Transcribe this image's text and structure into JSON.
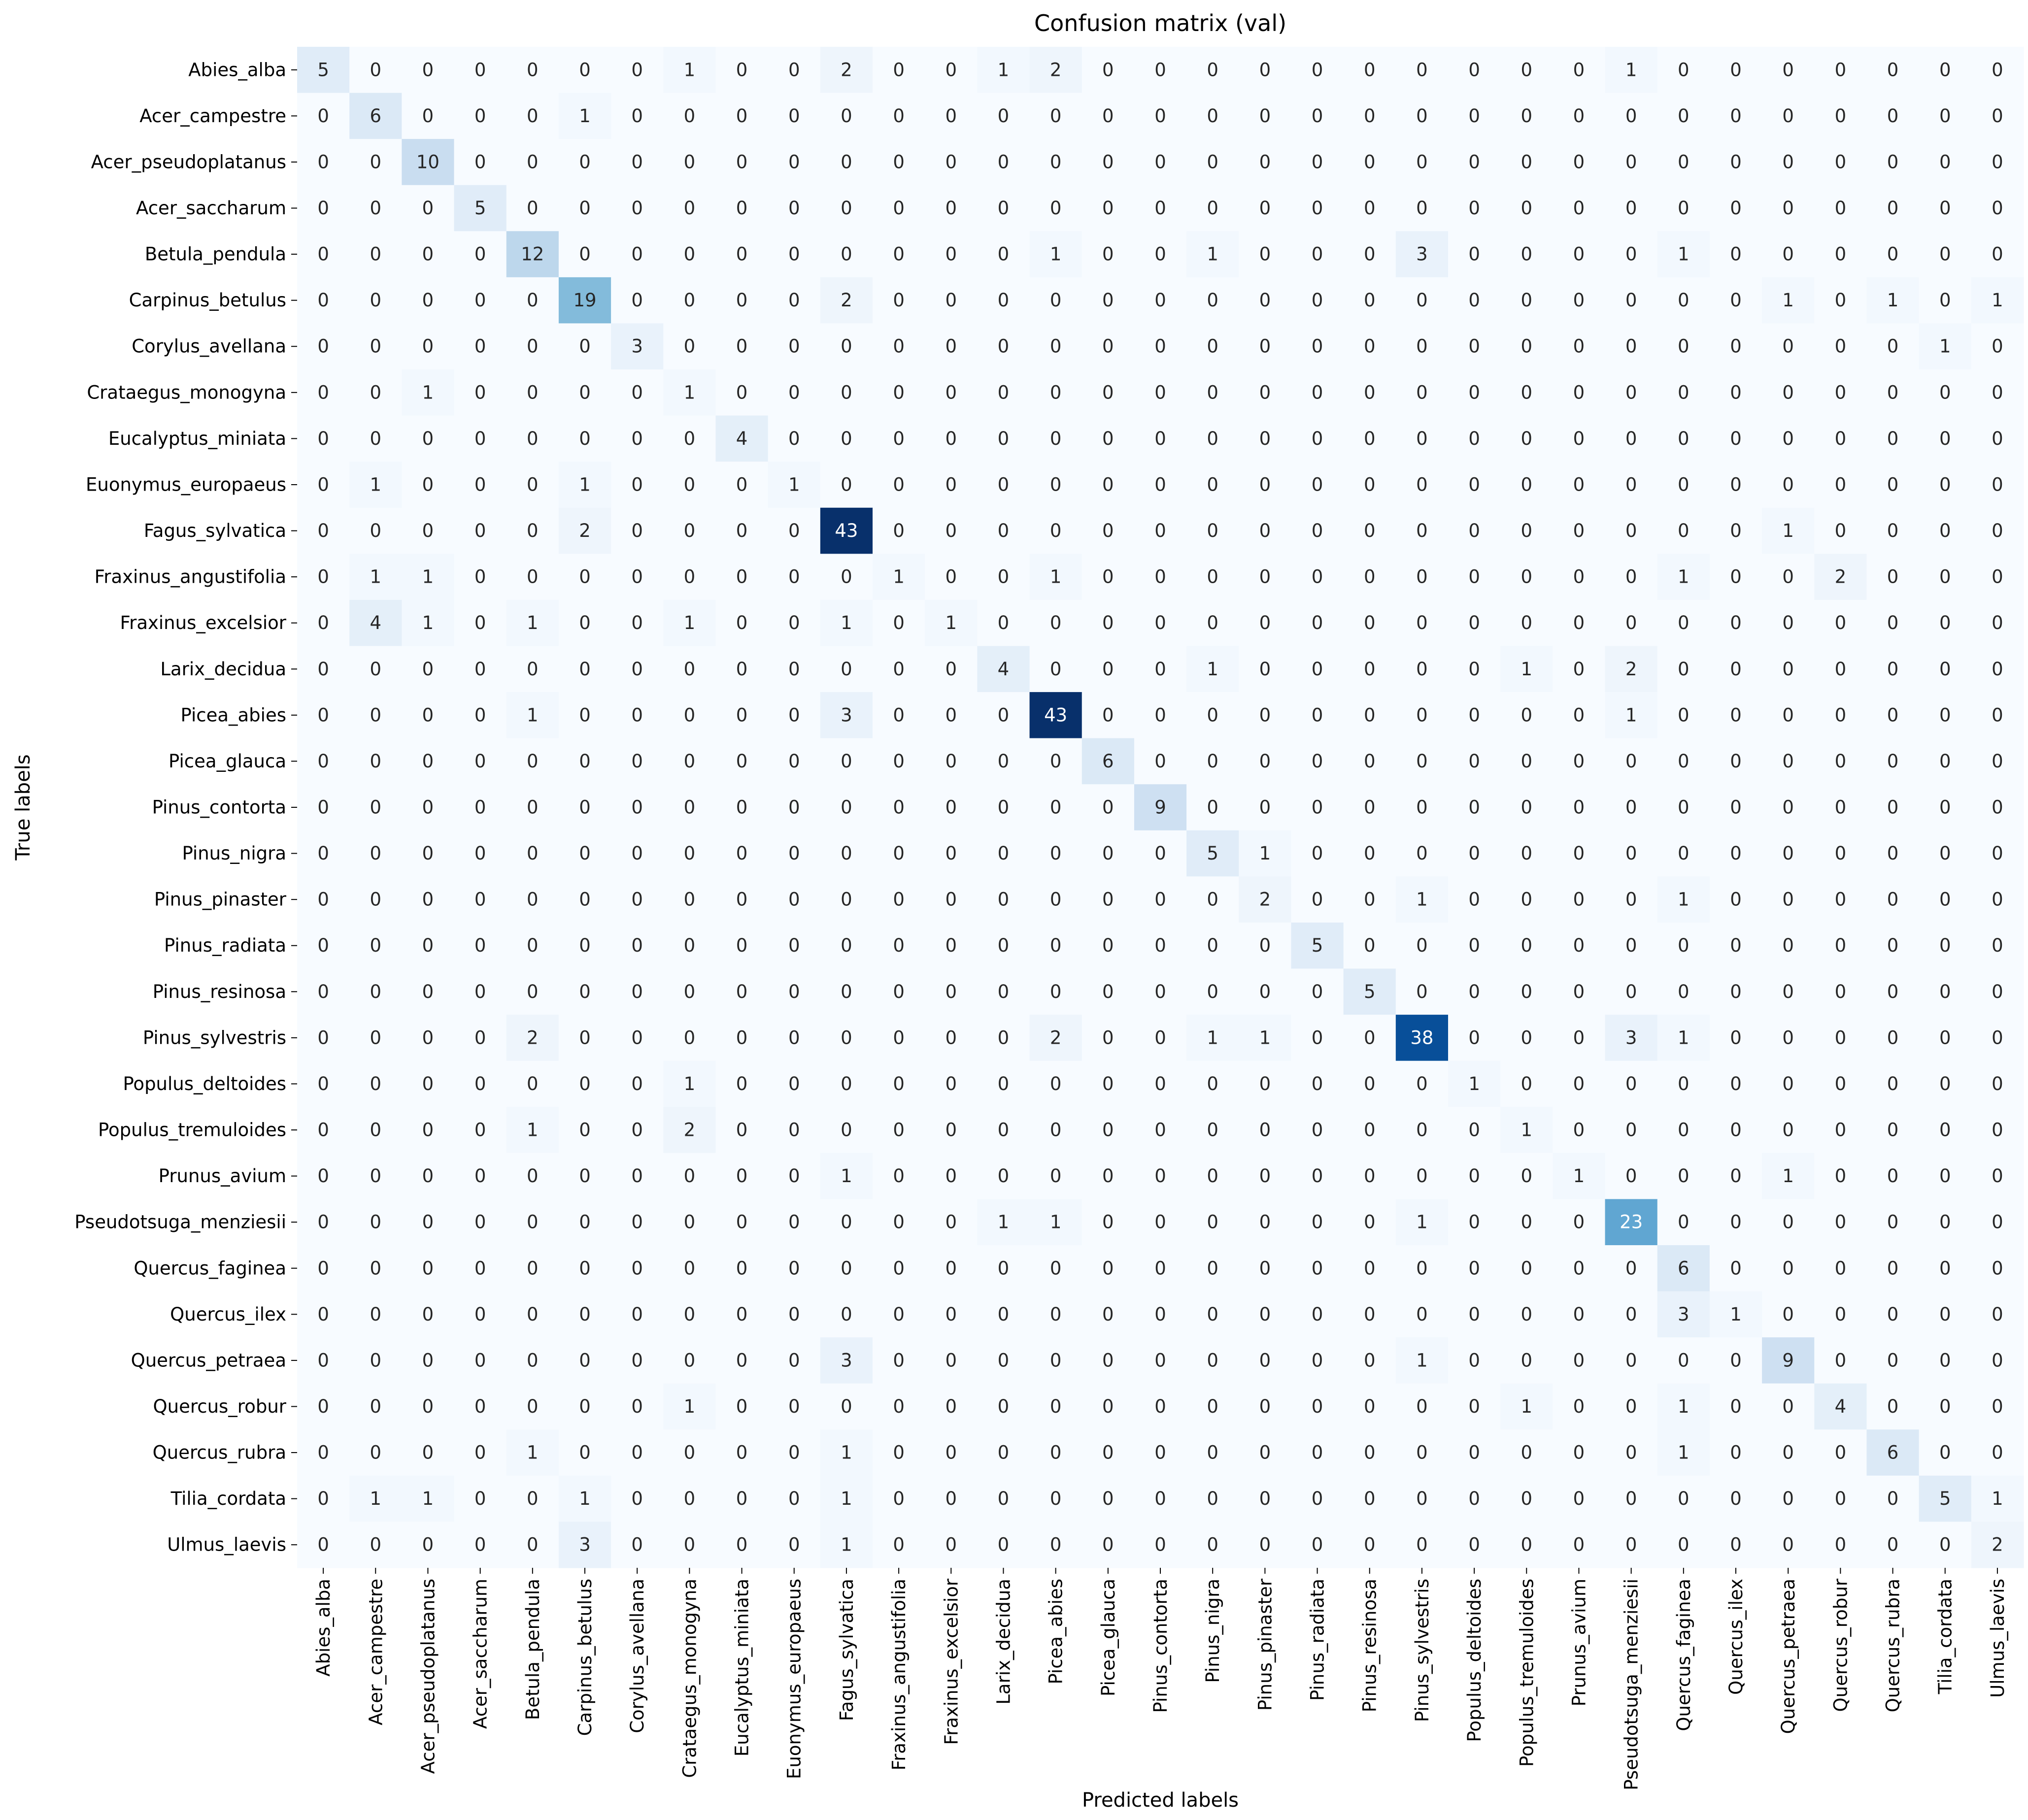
{
  "chart_data": {
    "type": "heatmap",
    "title": "Confusion matrix (val)",
    "xlabel": "Predicted labels",
    "ylabel": "True labels",
    "colormap": "Blues",
    "value_range": [
      0,
      43
    ],
    "colorbar": false,
    "labels": [
      "Abies_alba",
      "Acer_campestre",
      "Acer_pseudoplatanus",
      "Acer_saccharum",
      "Betula_pendula",
      "Carpinus_betulus",
      "Corylus_avellana",
      "Crataegus_monogyna",
      "Eucalyptus_miniata",
      "Euonymus_europaeus",
      "Fagus_sylvatica",
      "Fraxinus_angustifolia",
      "Fraxinus_excelsior",
      "Larix_decidua",
      "Picea_abies",
      "Picea_glauca",
      "Pinus_contorta",
      "Pinus_nigra",
      "Pinus_pinaster",
      "Pinus_radiata",
      "Pinus_resinosa",
      "Pinus_sylvestris",
      "Populus_deltoides",
      "Populus_tremuloides",
      "Prunus_avium",
      "Pseudotsuga_menziesii",
      "Quercus_faginea",
      "Quercus_ilex",
      "Quercus_petraea",
      "Quercus_robur",
      "Quercus_rubra",
      "Tilia_cordata",
      "Ulmus_laevis"
    ],
    "matrix": [
      [
        5,
        0,
        0,
        0,
        0,
        0,
        0,
        1,
        0,
        0,
        2,
        0,
        0,
        1,
        2,
        0,
        0,
        0,
        0,
        0,
        0,
        0,
        0,
        0,
        0,
        1,
        0,
        0,
        0,
        0,
        0,
        0,
        0
      ],
      [
        0,
        6,
        0,
        0,
        0,
        1,
        0,
        0,
        0,
        0,
        0,
        0,
        0,
        0,
        0,
        0,
        0,
        0,
        0,
        0,
        0,
        0,
        0,
        0,
        0,
        0,
        0,
        0,
        0,
        0,
        0,
        0,
        0
      ],
      [
        0,
        0,
        10,
        0,
        0,
        0,
        0,
        0,
        0,
        0,
        0,
        0,
        0,
        0,
        0,
        0,
        0,
        0,
        0,
        0,
        0,
        0,
        0,
        0,
        0,
        0,
        0,
        0,
        0,
        0,
        0,
        0,
        0
      ],
      [
        0,
        0,
        0,
        5,
        0,
        0,
        0,
        0,
        0,
        0,
        0,
        0,
        0,
        0,
        0,
        0,
        0,
        0,
        0,
        0,
        0,
        0,
        0,
        0,
        0,
        0,
        0,
        0,
        0,
        0,
        0,
        0,
        0
      ],
      [
        0,
        0,
        0,
        0,
        12,
        0,
        0,
        0,
        0,
        0,
        0,
        0,
        0,
        0,
        1,
        0,
        0,
        1,
        0,
        0,
        0,
        3,
        0,
        0,
        0,
        0,
        1,
        0,
        0,
        0,
        0,
        0,
        0
      ],
      [
        0,
        0,
        0,
        0,
        0,
        19,
        0,
        0,
        0,
        0,
        2,
        0,
        0,
        0,
        0,
        0,
        0,
        0,
        0,
        0,
        0,
        0,
        0,
        0,
        0,
        0,
        0,
        0,
        1,
        0,
        1,
        0,
        1
      ],
      [
        0,
        0,
        0,
        0,
        0,
        0,
        3,
        0,
        0,
        0,
        0,
        0,
        0,
        0,
        0,
        0,
        0,
        0,
        0,
        0,
        0,
        0,
        0,
        0,
        0,
        0,
        0,
        0,
        0,
        0,
        0,
        1,
        0
      ],
      [
        0,
        0,
        1,
        0,
        0,
        0,
        0,
        1,
        0,
        0,
        0,
        0,
        0,
        0,
        0,
        0,
        0,
        0,
        0,
        0,
        0,
        0,
        0,
        0,
        0,
        0,
        0,
        0,
        0,
        0,
        0,
        0,
        0
      ],
      [
        0,
        0,
        0,
        0,
        0,
        0,
        0,
        0,
        4,
        0,
        0,
        0,
        0,
        0,
        0,
        0,
        0,
        0,
        0,
        0,
        0,
        0,
        0,
        0,
        0,
        0,
        0,
        0,
        0,
        0,
        0,
        0,
        0
      ],
      [
        0,
        1,
        0,
        0,
        0,
        1,
        0,
        0,
        0,
        1,
        0,
        0,
        0,
        0,
        0,
        0,
        0,
        0,
        0,
        0,
        0,
        0,
        0,
        0,
        0,
        0,
        0,
        0,
        0,
        0,
        0,
        0,
        0
      ],
      [
        0,
        0,
        0,
        0,
        0,
        2,
        0,
        0,
        0,
        0,
        43,
        0,
        0,
        0,
        0,
        0,
        0,
        0,
        0,
        0,
        0,
        0,
        0,
        0,
        0,
        0,
        0,
        0,
        1,
        0,
        0,
        0,
        0
      ],
      [
        0,
        1,
        1,
        0,
        0,
        0,
        0,
        0,
        0,
        0,
        0,
        1,
        0,
        0,
        1,
        0,
        0,
        0,
        0,
        0,
        0,
        0,
        0,
        0,
        0,
        0,
        1,
        0,
        0,
        2,
        0,
        0,
        0
      ],
      [
        0,
        4,
        1,
        0,
        1,
        0,
        0,
        1,
        0,
        0,
        1,
        0,
        1,
        0,
        0,
        0,
        0,
        0,
        0,
        0,
        0,
        0,
        0,
        0,
        0,
        0,
        0,
        0,
        0,
        0,
        0,
        0,
        0
      ],
      [
        0,
        0,
        0,
        0,
        0,
        0,
        0,
        0,
        0,
        0,
        0,
        0,
        0,
        4,
        0,
        0,
        0,
        1,
        0,
        0,
        0,
        0,
        0,
        1,
        0,
        2,
        0,
        0,
        0,
        0,
        0,
        0,
        0
      ],
      [
        0,
        0,
        0,
        0,
        1,
        0,
        0,
        0,
        0,
        0,
        3,
        0,
        0,
        0,
        43,
        0,
        0,
        0,
        0,
        0,
        0,
        0,
        0,
        0,
        0,
        1,
        0,
        0,
        0,
        0,
        0,
        0,
        0
      ],
      [
        0,
        0,
        0,
        0,
        0,
        0,
        0,
        0,
        0,
        0,
        0,
        0,
        0,
        0,
        0,
        6,
        0,
        0,
        0,
        0,
        0,
        0,
        0,
        0,
        0,
        0,
        0,
        0,
        0,
        0,
        0,
        0,
        0
      ],
      [
        0,
        0,
        0,
        0,
        0,
        0,
        0,
        0,
        0,
        0,
        0,
        0,
        0,
        0,
        0,
        0,
        9,
        0,
        0,
        0,
        0,
        0,
        0,
        0,
        0,
        0,
        0,
        0,
        0,
        0,
        0,
        0,
        0
      ],
      [
        0,
        0,
        0,
        0,
        0,
        0,
        0,
        0,
        0,
        0,
        0,
        0,
        0,
        0,
        0,
        0,
        0,
        5,
        1,
        0,
        0,
        0,
        0,
        0,
        0,
        0,
        0,
        0,
        0,
        0,
        0,
        0,
        0
      ],
      [
        0,
        0,
        0,
        0,
        0,
        0,
        0,
        0,
        0,
        0,
        0,
        0,
        0,
        0,
        0,
        0,
        0,
        0,
        2,
        0,
        0,
        1,
        0,
        0,
        0,
        0,
        1,
        0,
        0,
        0,
        0,
        0,
        0
      ],
      [
        0,
        0,
        0,
        0,
        0,
        0,
        0,
        0,
        0,
        0,
        0,
        0,
        0,
        0,
        0,
        0,
        0,
        0,
        0,
        5,
        0,
        0,
        0,
        0,
        0,
        0,
        0,
        0,
        0,
        0,
        0,
        0,
        0
      ],
      [
        0,
        0,
        0,
        0,
        0,
        0,
        0,
        0,
        0,
        0,
        0,
        0,
        0,
        0,
        0,
        0,
        0,
        0,
        0,
        0,
        5,
        0,
        0,
        0,
        0,
        0,
        0,
        0,
        0,
        0,
        0,
        0,
        0
      ],
      [
        0,
        0,
        0,
        0,
        2,
        0,
        0,
        0,
        0,
        0,
        0,
        0,
        0,
        0,
        2,
        0,
        0,
        1,
        1,
        0,
        0,
        38,
        0,
        0,
        0,
        3,
        1,
        0,
        0,
        0,
        0,
        0,
        0
      ],
      [
        0,
        0,
        0,
        0,
        0,
        0,
        0,
        1,
        0,
        0,
        0,
        0,
        0,
        0,
        0,
        0,
        0,
        0,
        0,
        0,
        0,
        0,
        1,
        0,
        0,
        0,
        0,
        0,
        0,
        0,
        0,
        0,
        0
      ],
      [
        0,
        0,
        0,
        0,
        1,
        0,
        0,
        2,
        0,
        0,
        0,
        0,
        0,
        0,
        0,
        0,
        0,
        0,
        0,
        0,
        0,
        0,
        0,
        1,
        0,
        0,
        0,
        0,
        0,
        0,
        0,
        0,
        0
      ],
      [
        0,
        0,
        0,
        0,
        0,
        0,
        0,
        0,
        0,
        0,
        1,
        0,
        0,
        0,
        0,
        0,
        0,
        0,
        0,
        0,
        0,
        0,
        0,
        0,
        1,
        0,
        0,
        0,
        1,
        0,
        0,
        0,
        0
      ],
      [
        0,
        0,
        0,
        0,
        0,
        0,
        0,
        0,
        0,
        0,
        0,
        0,
        0,
        1,
        1,
        0,
        0,
        0,
        0,
        0,
        0,
        1,
        0,
        0,
        0,
        23,
        0,
        0,
        0,
        0,
        0,
        0,
        0
      ],
      [
        0,
        0,
        0,
        0,
        0,
        0,
        0,
        0,
        0,
        0,
        0,
        0,
        0,
        0,
        0,
        0,
        0,
        0,
        0,
        0,
        0,
        0,
        0,
        0,
        0,
        0,
        6,
        0,
        0,
        0,
        0,
        0,
        0
      ],
      [
        0,
        0,
        0,
        0,
        0,
        0,
        0,
        0,
        0,
        0,
        0,
        0,
        0,
        0,
        0,
        0,
        0,
        0,
        0,
        0,
        0,
        0,
        0,
        0,
        0,
        0,
        3,
        1,
        0,
        0,
        0,
        0,
        0
      ],
      [
        0,
        0,
        0,
        0,
        0,
        0,
        0,
        0,
        0,
        0,
        3,
        0,
        0,
        0,
        0,
        0,
        0,
        0,
        0,
        0,
        0,
        1,
        0,
        0,
        0,
        0,
        0,
        0,
        9,
        0,
        0,
        0,
        0
      ],
      [
        0,
        0,
        0,
        0,
        0,
        0,
        0,
        1,
        0,
        0,
        0,
        0,
        0,
        0,
        0,
        0,
        0,
        0,
        0,
        0,
        0,
        0,
        0,
        1,
        0,
        0,
        1,
        0,
        0,
        4,
        0,
        0,
        0
      ],
      [
        0,
        0,
        0,
        0,
        1,
        0,
        0,
        0,
        0,
        0,
        1,
        0,
        0,
        0,
        0,
        0,
        0,
        0,
        0,
        0,
        0,
        0,
        0,
        0,
        0,
        0,
        1,
        0,
        0,
        0,
        6,
        0,
        0
      ],
      [
        0,
        1,
        1,
        0,
        0,
        1,
        0,
        0,
        0,
        0,
        1,
        0,
        0,
        0,
        0,
        0,
        0,
        0,
        0,
        0,
        0,
        0,
        0,
        0,
        0,
        0,
        0,
        0,
        0,
        0,
        0,
        5,
        1
      ],
      [
        0,
        0,
        0,
        0,
        0,
        3,
        0,
        0,
        0,
        0,
        1,
        0,
        0,
        0,
        0,
        0,
        0,
        0,
        0,
        0,
        0,
        0,
        0,
        0,
        0,
        0,
        0,
        0,
        0,
        0,
        0,
        0,
        2
      ]
    ]
  }
}
